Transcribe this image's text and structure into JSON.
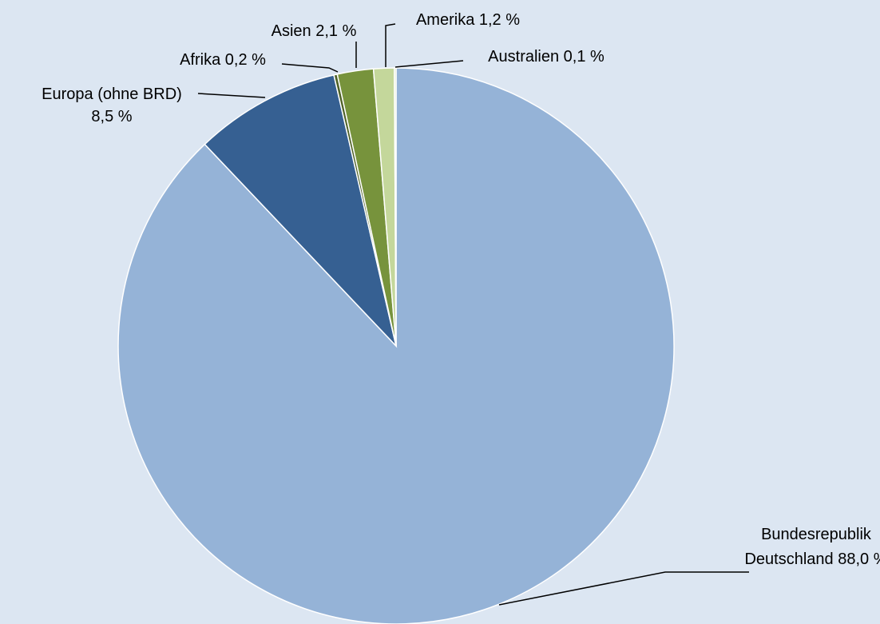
{
  "chart_data": {
    "type": "pie",
    "title": "",
    "slices": [
      {
        "label_lines": [
          "Bundesrepublik",
          "Deutschland 88,0 %"
        ],
        "value": 88.0,
        "color": "#95b3d7"
      },
      {
        "label_lines": [
          "Europa (ohne BRD)",
          "8,5 %"
        ],
        "value": 8.5,
        "color": "#366092"
      },
      {
        "label_lines": [
          "Afrika 0,2 %"
        ],
        "value": 0.2,
        "color": "#4f6228"
      },
      {
        "label_lines": [
          "Asien 2,1 %"
        ],
        "value": 2.1,
        "color": "#77933c"
      },
      {
        "label_lines": [
          "Amerika 1,2 %"
        ],
        "value": 1.2,
        "color": "#c4d79b"
      },
      {
        "label_lines": [
          "Australien 0,1 %"
        ],
        "value": 0.1,
        "color": "#d7e4bd"
      }
    ],
    "start_angle": "12 o'clock",
    "direction": "clockwise",
    "legend": "none",
    "data_labels": "outside with leader lines",
    "background_color": "#dce6f2"
  }
}
